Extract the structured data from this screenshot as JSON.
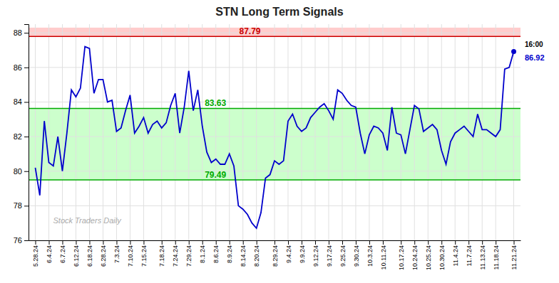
{
  "chart_data": {
    "type": "line",
    "title": "STN Long Term Signals",
    "categories": [
      "5.28.24",
      null,
      null,
      "6.4.24",
      null,
      null,
      "6.7.24",
      null,
      null,
      "6.12.24",
      null,
      null,
      "6.18.24",
      null,
      null,
      "6.28.24",
      null,
      null,
      "7.3.24",
      null,
      null,
      "7.10.24",
      null,
      null,
      "7.15.24",
      null,
      null,
      null,
      "7.18.24",
      null,
      null,
      "7.24.24",
      null,
      null,
      "7.29.24",
      null,
      null,
      "8.1.24",
      null,
      null,
      "8.6.24",
      null,
      null,
      "8.9.24",
      null,
      null,
      "8.14.24",
      null,
      null,
      "8.20.24",
      null,
      null,
      null,
      "8.29.24",
      null,
      null,
      "9.4.24",
      null,
      null,
      "9.9.24",
      null,
      null,
      "9.12.24",
      null,
      null,
      "9.17.24",
      null,
      null,
      "9.25.24",
      null,
      null,
      "9.30.24",
      null,
      null,
      "10.3.24",
      null,
      null,
      "10.11.24",
      null,
      null,
      null,
      "10.17.24",
      null,
      null,
      "10.24.24",
      null,
      null,
      "10.25.24",
      null,
      null,
      "10.30.24",
      null,
      null,
      "11.4.24",
      null,
      null,
      "11.7.24",
      null,
      null,
      "11.13.24",
      null,
      null,
      "11.18.24",
      null,
      null,
      null,
      "11.21.24"
    ],
    "series": [
      {
        "color": "#0000cc",
        "marker": "circle",
        "values": [
          80.2,
          78.6,
          82.9,
          80.5,
          80.3,
          82.0,
          80.0,
          82.2,
          84.7,
          84.3,
          84.8,
          87.2,
          87.1,
          84.5,
          85.3,
          85.3,
          84.0,
          84.1,
          82.3,
          82.5,
          83.5,
          84.4,
          82.2,
          82.6,
          83.1,
          82.2,
          82.7,
          82.9,
          82.5,
          82.8,
          83.8,
          84.5,
          82.2,
          83.7,
          85.8,
          83.5,
          84.7,
          82.6,
          81.1,
          80.5,
          80.7,
          80.4,
          80.4,
          81.0,
          80.3,
          78.0,
          77.8,
          77.5,
          77.0,
          76.7,
          77.6,
          79.6,
          79.8,
          80.6,
          80.4,
          80.6,
          82.9,
          83.3,
          82.6,
          82.3,
          82.5,
          83.1,
          83.4,
          83.7,
          83.9,
          83.5,
          83.0,
          84.7,
          84.5,
          84.1,
          83.8,
          83.7,
          82.2,
          81.0,
          82.1,
          82.6,
          82.5,
          82.2,
          81.2,
          83.7,
          82.2,
          82.1,
          81.0,
          82.4,
          83.8,
          83.6,
          82.3,
          82.5,
          82.7,
          82.4,
          81.2,
          80.4,
          81.7,
          82.2,
          82.4,
          82.6,
          82.3,
          82.0,
          83.3,
          82.4,
          82.4,
          82.2,
          82.0,
          82.4,
          85.9,
          86.0,
          86.92
        ]
      }
    ],
    "bands": [
      {
        "from": 87.79,
        "to": 88.3,
        "color": "#ffcccc"
      },
      {
        "from": 79.49,
        "to": 83.63,
        "color": "#ccffcc"
      }
    ],
    "reference_lines": [
      {
        "value": 87.79,
        "color": "#cc0000"
      },
      {
        "value": 83.63,
        "color": "#00aa00"
      },
      {
        "value": 79.49,
        "color": "#00aa00"
      }
    ],
    "annotations": [
      {
        "text": "16:00",
        "color": "#000000"
      },
      {
        "text": "Stock Traders Daily",
        "color": "#aaaaaa"
      }
    ],
    "ylim": [
      76,
      88.5
    ],
    "yticks": [
      76,
      78,
      80,
      82,
      84,
      86,
      88
    ],
    "grid": true
  }
}
